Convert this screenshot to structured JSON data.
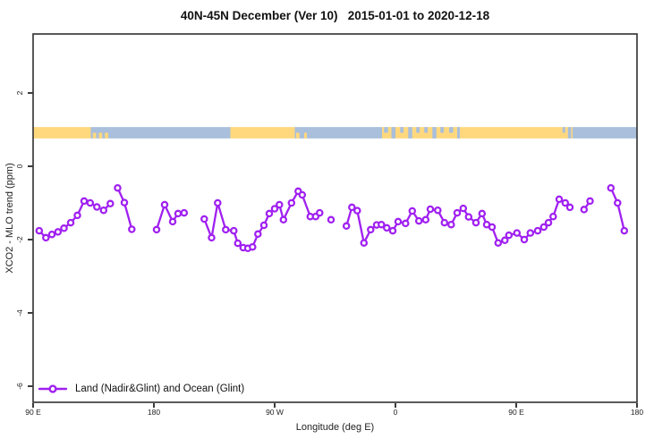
{
  "chart_data": {
    "type": "line",
    "title": "40N-45N December (Ver 10)   2015-01-01 to 2020-12-18",
    "xlabel": "Longitude (deg E)",
    "ylabel": "XCO2 - MLO trend (ppm)",
    "xlim": [
      90,
      540
    ],
    "ylim": [
      -6.44,
      3.61
    ],
    "grid": false,
    "x_ticks": [
      {
        "value": 90,
        "label": "90 E"
      },
      {
        "value": 180,
        "label": "180"
      },
      {
        "value": 270,
        "label": "90 W"
      },
      {
        "value": 360,
        "label": "0"
      },
      {
        "value": 450,
        "label": "90 E"
      },
      {
        "value": 540,
        "label": "180"
      }
    ],
    "y_ticks": [
      {
        "value": 2,
        "label": "2"
      },
      {
        "value": 0,
        "label": "0"
      },
      {
        "value": -2,
        "label": "-2"
      },
      {
        "value": -4,
        "label": "-4"
      },
      {
        "value": -6,
        "label": "-6"
      }
    ],
    "legend": {
      "position": "bottom-left",
      "entries": [
        {
          "label": "Land (Nadir&Glint) and Ocean (Glint)",
          "color": "#A020F0",
          "marker": "open-circle"
        }
      ]
    },
    "series": [
      {
        "name": "Land (Nadir&Glint) and Ocean (Glint)",
        "color": "#A020F0",
        "marker": "open-circle",
        "segments": [
          [
            [
              94.5,
              -1.76
            ],
            [
              99.5,
              -1.95
            ],
            [
              104,
              -1.86
            ],
            [
              108.5,
              -1.79
            ],
            [
              113,
              -1.69
            ],
            [
              118,
              -1.54
            ],
            [
              123,
              -1.34
            ],
            [
              128,
              -0.95
            ],
            [
              132.5,
              -1.0
            ],
            [
              137.5,
              -1.11
            ]
          ],
          [
            [
              142.5,
              -1.2
            ],
            [
              147.5,
              -1.02
            ]
          ],
          [
            [
              153,
              -0.59
            ],
            [
              158,
              -0.99
            ],
            [
              163.5,
              -1.72
            ]
          ],
          [
            [
              182,
              -1.73
            ],
            [
              188,
              -1.05
            ],
            [
              194,
              -1.51
            ],
            [
              198,
              -1.29
            ],
            [
              202.5,
              -1.27
            ]
          ],
          [
            [
              217.5,
              -1.44
            ],
            [
              223,
              -1.95
            ],
            [
              227.5,
              -1.0
            ],
            [
              233.5,
              -1.73
            ],
            [
              239.5,
              -1.76
            ],
            [
              242.5,
              -2.1
            ],
            [
              246.5,
              -2.22
            ],
            [
              250,
              -2.24
            ],
            [
              253.5,
              -2.2
            ],
            [
              257.5,
              -1.85
            ],
            [
              262,
              -1.61
            ],
            [
              266,
              -1.29
            ],
            [
              270,
              -1.16
            ],
            [
              273.5,
              -1.05
            ],
            [
              276.5,
              -1.46
            ],
            [
              282.5,
              -1.0
            ],
            [
              287.5,
              -0.68
            ],
            [
              290.5,
              -0.78
            ],
            [
              296.5,
              -1.37
            ],
            [
              300.5,
              -1.37
            ],
            [
              303.5,
              -1.27
            ]
          ],
          [
            [
              312,
              -1.46
            ]
          ],
          [
            [
              323.5,
              -1.63
            ],
            [
              327.5,
              -1.12
            ],
            [
              331.5,
              -1.21
            ],
            [
              336.5,
              -2.09
            ],
            [
              341.5,
              -1.73
            ],
            [
              346,
              -1.6
            ],
            [
              349.5,
              -1.59
            ],
            [
              353.5,
              -1.68
            ],
            [
              358,
              -1.76
            ],
            [
              362,
              -1.51
            ],
            [
              367.5,
              -1.56
            ],
            [
              372.5,
              -1.22
            ],
            [
              377.5,
              -1.49
            ],
            [
              382.5,
              -1.46
            ],
            [
              386,
              -1.17
            ],
            [
              391.5,
              -1.2
            ],
            [
              396.5,
              -1.54
            ],
            [
              401.5,
              -1.59
            ],
            [
              406,
              -1.27
            ],
            [
              410.5,
              -1.15
            ],
            [
              414.5,
              -1.38
            ],
            [
              420,
              -1.54
            ],
            [
              424.5,
              -1.29
            ],
            [
              428,
              -1.59
            ],
            [
              432,
              -1.66
            ],
            [
              436.5,
              -2.09
            ],
            [
              441.5,
              -2.02
            ],
            [
              444.5,
              -1.88
            ],
            [
              450.5,
              -1.82
            ],
            [
              456,
              -2.0
            ],
            [
              460.5,
              -1.82
            ],
            [
              466,
              -1.76
            ],
            [
              470.5,
              -1.66
            ],
            [
              474,
              -1.54
            ],
            [
              477.5,
              -1.37
            ],
            [
              482,
              -0.9
            ],
            [
              486.5,
              -1.0
            ],
            [
              490,
              -1.12
            ]
          ],
          [
            [
              500.5,
              -1.18
            ],
            [
              505,
              -0.95
            ]
          ],
          [
            [
              520.5,
              -0.59
            ],
            [
              525.5,
              -1.0
            ],
            [
              530.5,
              -1.76
            ]
          ]
        ]
      }
    ],
    "land_ocean_strip": {
      "y_top": 1.07,
      "y_bottom": 0.76,
      "land_color": "#FFD87E",
      "ocean_color": "#A9BFDB",
      "segments": [
        [
          90,
          133,
          "land"
        ],
        [
          133,
          237,
          "ocean"
        ],
        [
          237,
          285,
          "land"
        ],
        [
          285,
          350,
          "ocean"
        ],
        [
          350,
          492,
          "land"
        ],
        [
          492,
          540,
          "ocean"
        ]
      ],
      "patches": [
        [
          134.5,
          137,
          "land",
          "bottom"
        ],
        [
          139,
          141.5,
          "land",
          "bottom"
        ],
        [
          143.5,
          146,
          "land",
          "bottom"
        ],
        [
          286,
          288.5,
          "land",
          "bottom"
        ],
        [
          292,
          294,
          "land",
          "bottom"
        ],
        [
          351.5,
          354.5,
          "ocean",
          "top"
        ],
        [
          357,
          360,
          "ocean",
          "full"
        ],
        [
          363.5,
          366,
          "ocean",
          "top"
        ],
        [
          369.5,
          372.5,
          "ocean",
          "full"
        ],
        [
          375.5,
          378,
          "ocean",
          "top"
        ],
        [
          381.5,
          384,
          "ocean",
          "top"
        ],
        [
          387.5,
          390.5,
          "ocean",
          "full"
        ],
        [
          393.5,
          396,
          "ocean",
          "top"
        ],
        [
          400,
          403,
          "ocean",
          "top"
        ],
        [
          406,
          408,
          "ocean",
          "full"
        ],
        [
          484.5,
          486.5,
          "ocean",
          "top"
        ],
        [
          488.5,
          491,
          "ocean",
          "full"
        ]
      ]
    }
  },
  "colors": {
    "series": "#A020F0",
    "land": "#FFD87E",
    "ocean": "#A9BFDB",
    "axis": "#3c3c3c"
  }
}
